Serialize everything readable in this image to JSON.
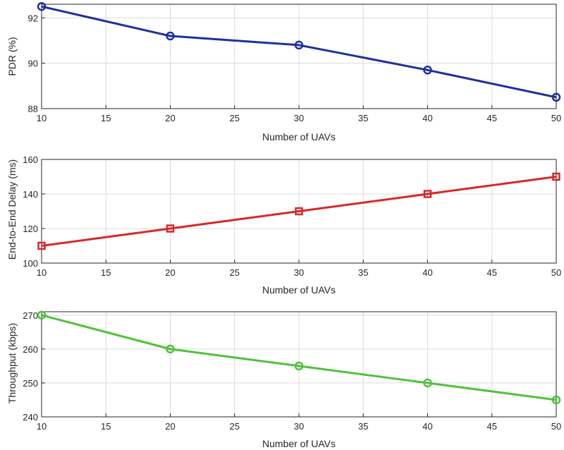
{
  "chart_data": [
    {
      "type": "line",
      "x": [
        10,
        20,
        30,
        40,
        50
      ],
      "series": [
        {
          "name": "PDR",
          "values": [
            92.5,
            91.2,
            90.8,
            89.7,
            88.5
          ],
          "color": "#1f2f9e"
        }
      ],
      "title": "",
      "xlabel": "Number of UAVs",
      "ylabel": "PDR (%)",
      "xlim": [
        10,
        50
      ],
      "ylim": [
        88,
        92.6
      ],
      "xticks": [
        10,
        15,
        20,
        25,
        30,
        35,
        40,
        45,
        50
      ],
      "yticks": [
        88,
        90,
        92
      ],
      "marker": "circle-open",
      "grid": true
    },
    {
      "type": "line",
      "x": [
        10,
        20,
        30,
        40,
        50
      ],
      "series": [
        {
          "name": "End-to-End Delay",
          "values": [
            110,
            120,
            130,
            140,
            150
          ],
          "color": "#d42a2a"
        }
      ],
      "title": "",
      "xlabel": "Number of UAVs",
      "ylabel": "End-to-End Delay (ms)",
      "xlim": [
        10,
        50
      ],
      "ylim": [
        100,
        160
      ],
      "xticks": [
        10,
        15,
        20,
        25,
        30,
        35,
        40,
        45,
        50
      ],
      "yticks": [
        100,
        120,
        140,
        160
      ],
      "marker": "square-open",
      "grid": true
    },
    {
      "type": "line",
      "x": [
        10,
        20,
        30,
        40,
        50
      ],
      "series": [
        {
          "name": "Throughput",
          "values": [
            270,
            260,
            255,
            250,
            245
          ],
          "color": "#4fc23a"
        }
      ],
      "title": "",
      "xlabel": "Number of UAVs",
      "ylabel": "Throughput (kbps)",
      "xlim": [
        10,
        50
      ],
      "ylim": [
        240,
        271
      ],
      "xticks": [
        10,
        15,
        20,
        25,
        30,
        35,
        40,
        45,
        50
      ],
      "yticks": [
        240,
        250,
        260,
        270
      ],
      "marker": "circle-open",
      "grid": true
    }
  ]
}
